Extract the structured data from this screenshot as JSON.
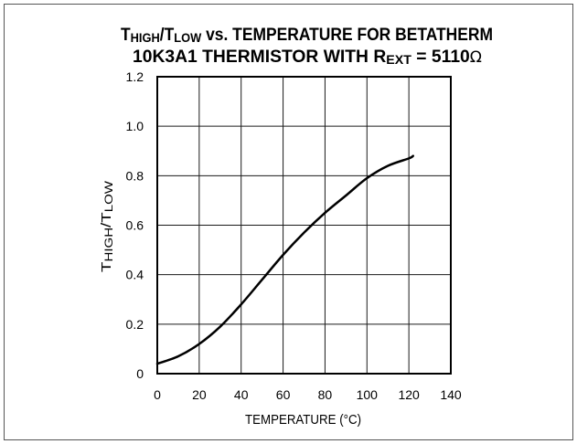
{
  "chart_data": {
    "type": "line",
    "title": {
      "line1": {
        "a": "T",
        "a_sub": "HIGH",
        "b": "/T",
        "b_sub": "LOW",
        "c": " vs. TEMPERATURE FOR BETATHERM"
      },
      "line2": {
        "a": "10K3A1 THERMISTOR WITH R",
        "a_sub": "EXT",
        "b": " = 5110",
        "unit": "Ω"
      }
    },
    "xlabel": "TEMPERATURE (°C)",
    "ylabel": {
      "a": "T",
      "a_sub": "HIGH",
      "b": "/T",
      "b_sub": "LOW"
    },
    "xlim": [
      0,
      140
    ],
    "ylim": [
      0,
      1.2
    ],
    "x_ticks": [
      0,
      20,
      40,
      60,
      80,
      100,
      120,
      140
    ],
    "x_tick_labels": [
      "0",
      "20",
      "40",
      "60",
      "80",
      "100",
      "120",
      "140"
    ],
    "y_ticks": [
      0,
      0.2,
      0.4,
      0.6,
      0.8,
      1.0,
      1.2
    ],
    "y_tick_labels": [
      "0",
      "0.2",
      "0.4",
      "0.6",
      "0.8",
      "1.0",
      "1.2"
    ],
    "grid": true,
    "series": [
      {
        "x": [
          0,
          10,
          20,
          30,
          40,
          50,
          60,
          70,
          80,
          90,
          100,
          110,
          120,
          122
        ],
        "y": [
          0.04,
          0.07,
          0.12,
          0.19,
          0.28,
          0.38,
          0.48,
          0.57,
          0.65,
          0.72,
          0.79,
          0.84,
          0.87,
          0.88
        ]
      }
    ],
    "colors": {
      "line": "#000000",
      "grid": "#1a1a1a",
      "frame": "#555555",
      "plot_border": "#000000"
    }
  }
}
